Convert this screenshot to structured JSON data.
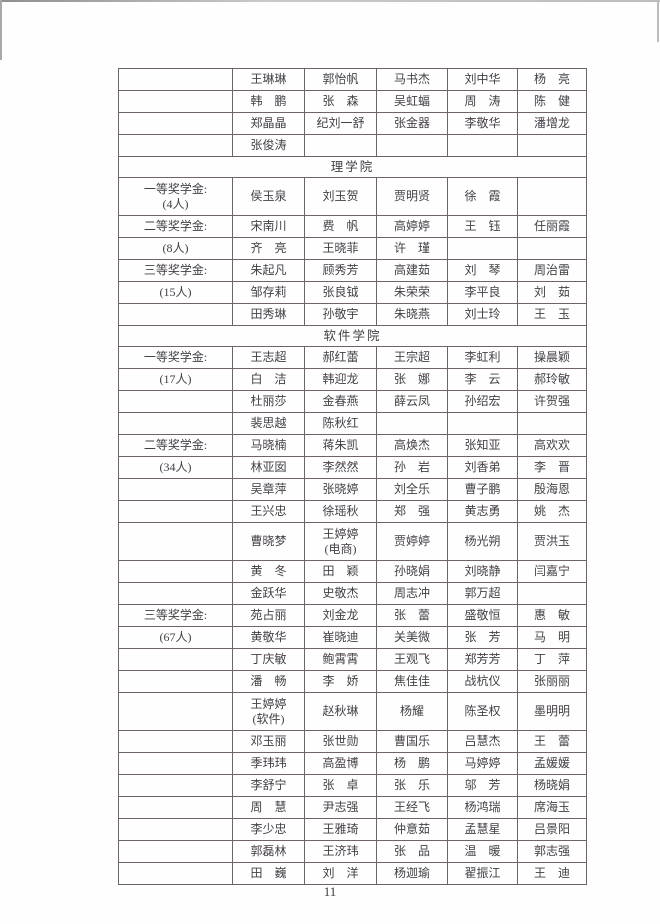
{
  "page_number": "11",
  "colors": {
    "table_border": "#6e6468",
    "ink": "#433f46",
    "page_bg": "#fefefe"
  },
  "table": {
    "columns": 6,
    "rows": [
      {
        "type": "row",
        "cells": [
          "",
          "王琳琳",
          "郭怡帆",
          "马书杰",
          "刘中华",
          "杨　亮"
        ]
      },
      {
        "type": "row",
        "cells": [
          "",
          "韩　鹏",
          "张　森",
          "吴虹蝠",
          "周　涛",
          "陈　健"
        ]
      },
      {
        "type": "row",
        "cells": [
          "",
          "郑晶晶",
          "纪刘一舒",
          "张金器",
          "李敬华",
          "潘增龙"
        ]
      },
      {
        "type": "row",
        "cells": [
          "",
          "张俊涛",
          "",
          "",
          "",
          ""
        ]
      },
      {
        "type": "section",
        "label": "理学院"
      },
      {
        "type": "row",
        "tall": true,
        "cells": [
          "一等奖学金:\n(4人)",
          "侯玉泉",
          "刘玉贺",
          "贾明贤",
          "徐　霞",
          ""
        ]
      },
      {
        "type": "row",
        "cells": [
          "二等奖学金:",
          "宋南川",
          "费　帆",
          "高婷婷",
          "王　钰",
          "任丽霞"
        ]
      },
      {
        "type": "row",
        "cells": [
          "(8人)",
          "齐　亮",
          "王晓菲",
          "许　瑾",
          "",
          ""
        ]
      },
      {
        "type": "row",
        "cells": [
          "三等奖学金:",
          "朱起凡",
          "顾秀芳",
          "高建茹",
          "刘　琴",
          "周治雷"
        ]
      },
      {
        "type": "row",
        "cells": [
          "(15人)",
          "邹存莉",
          "张良钺",
          "朱荣荣",
          "李平良",
          "刘　茹"
        ]
      },
      {
        "type": "row",
        "cells": [
          "",
          "田秀琳",
          "孙敬宇",
          "朱晓燕",
          "刘士玲",
          "王　玉"
        ]
      },
      {
        "type": "section",
        "label": "软件学院"
      },
      {
        "type": "row",
        "cells": [
          "一等奖学金:",
          "王志超",
          "郝红蕾",
          "王宗超",
          "李虹利",
          "操晨颖"
        ]
      },
      {
        "type": "row",
        "cells": [
          "(17人)",
          "白　洁",
          "韩迎龙",
          "张　娜",
          "李　云",
          "郝玲敏"
        ]
      },
      {
        "type": "row",
        "cells": [
          "",
          "杜丽莎",
          "金春燕",
          "薛云凤",
          "孙绍宏",
          "许贺强"
        ]
      },
      {
        "type": "row",
        "cells": [
          "",
          "裴思越",
          "陈秋红",
          "",
          "",
          ""
        ]
      },
      {
        "type": "row",
        "cells": [
          "二等奖学金:",
          "马晓楠",
          "蒋朱凯",
          "高焕杰",
          "张知亚",
          "高欢欢"
        ]
      },
      {
        "type": "row",
        "cells": [
          "(34人)",
          "林亚囡",
          "李然然",
          "孙　岩",
          "刘香弟",
          "李　晋"
        ]
      },
      {
        "type": "row",
        "cells": [
          "",
          "吴章萍",
          "张晓婷",
          "刘全乐",
          "曹子鹏",
          "殷海恩"
        ]
      },
      {
        "type": "row",
        "cells": [
          "",
          "王兴忠",
          "徐瑶秋",
          "郑　强",
          "黄志勇",
          "姚　杰"
        ]
      },
      {
        "type": "row",
        "tall": true,
        "cells": [
          "",
          "曹晓梦",
          "王婷婷\n(电商)",
          "贾婷婷",
          "杨光朔",
          "贾洪玉"
        ]
      },
      {
        "type": "row",
        "cells": [
          "",
          "黄　冬",
          "田　颖",
          "孙晓娟",
          "刘晓静",
          "闫嘉宁"
        ]
      },
      {
        "type": "row",
        "cells": [
          "",
          "金跃华",
          "史敬杰",
          "周志冲",
          "郭万超",
          ""
        ]
      },
      {
        "type": "row",
        "cells": [
          "三等奖学金:",
          "苑占丽",
          "刘金龙",
          "张　蕾",
          "盛敬恒",
          "惠　敏"
        ]
      },
      {
        "type": "row",
        "cells": [
          "(67人)",
          "黄敬华",
          "崔晓迪",
          "关美微",
          "张　芳",
          "马　明"
        ]
      },
      {
        "type": "row",
        "cells": [
          "",
          "丁庆敏",
          "鲍霄霄",
          "王观飞",
          "郑芳芳",
          "丁　萍"
        ]
      },
      {
        "type": "row",
        "cells": [
          "",
          "潘　畅",
          "李　娇",
          "焦佳佳",
          "战杭仪",
          "张丽丽"
        ]
      },
      {
        "type": "row",
        "tall": true,
        "cells": [
          "",
          "王婷婷\n(软件)",
          "赵秋琳",
          "杨耀",
          "陈圣权",
          "墨明明"
        ]
      },
      {
        "type": "row",
        "cells": [
          "",
          "邓玉丽",
          "张世勋",
          "曹国乐",
          "吕慧杰",
          "王　蕾"
        ]
      },
      {
        "type": "row",
        "cells": [
          "",
          "季玮玮",
          "高盈博",
          "杨　鹏",
          "马婷婷",
          "孟媛媛"
        ]
      },
      {
        "type": "row",
        "cells": [
          "",
          "李舒宁",
          "张　卓",
          "张　乐",
          "邬　芳",
          "杨晓娟"
        ]
      },
      {
        "type": "row",
        "cells": [
          "",
          "周　慧",
          "尹志强",
          "王经飞",
          "杨鸿瑞",
          "席海玉"
        ]
      },
      {
        "type": "row",
        "cells": [
          "",
          "李少忠",
          "王雅琦",
          "仲意茹",
          "孟慧星",
          "吕景阳"
        ]
      },
      {
        "type": "row",
        "cells": [
          "",
          "郭磊林",
          "王济玮",
          "张　品",
          "温　暖",
          "郭志强"
        ]
      },
      {
        "type": "row",
        "cells": [
          "",
          "田　巍",
          "刘　洋",
          "杨迦瑜",
          "翟振江",
          "王　迪"
        ]
      }
    ]
  }
}
